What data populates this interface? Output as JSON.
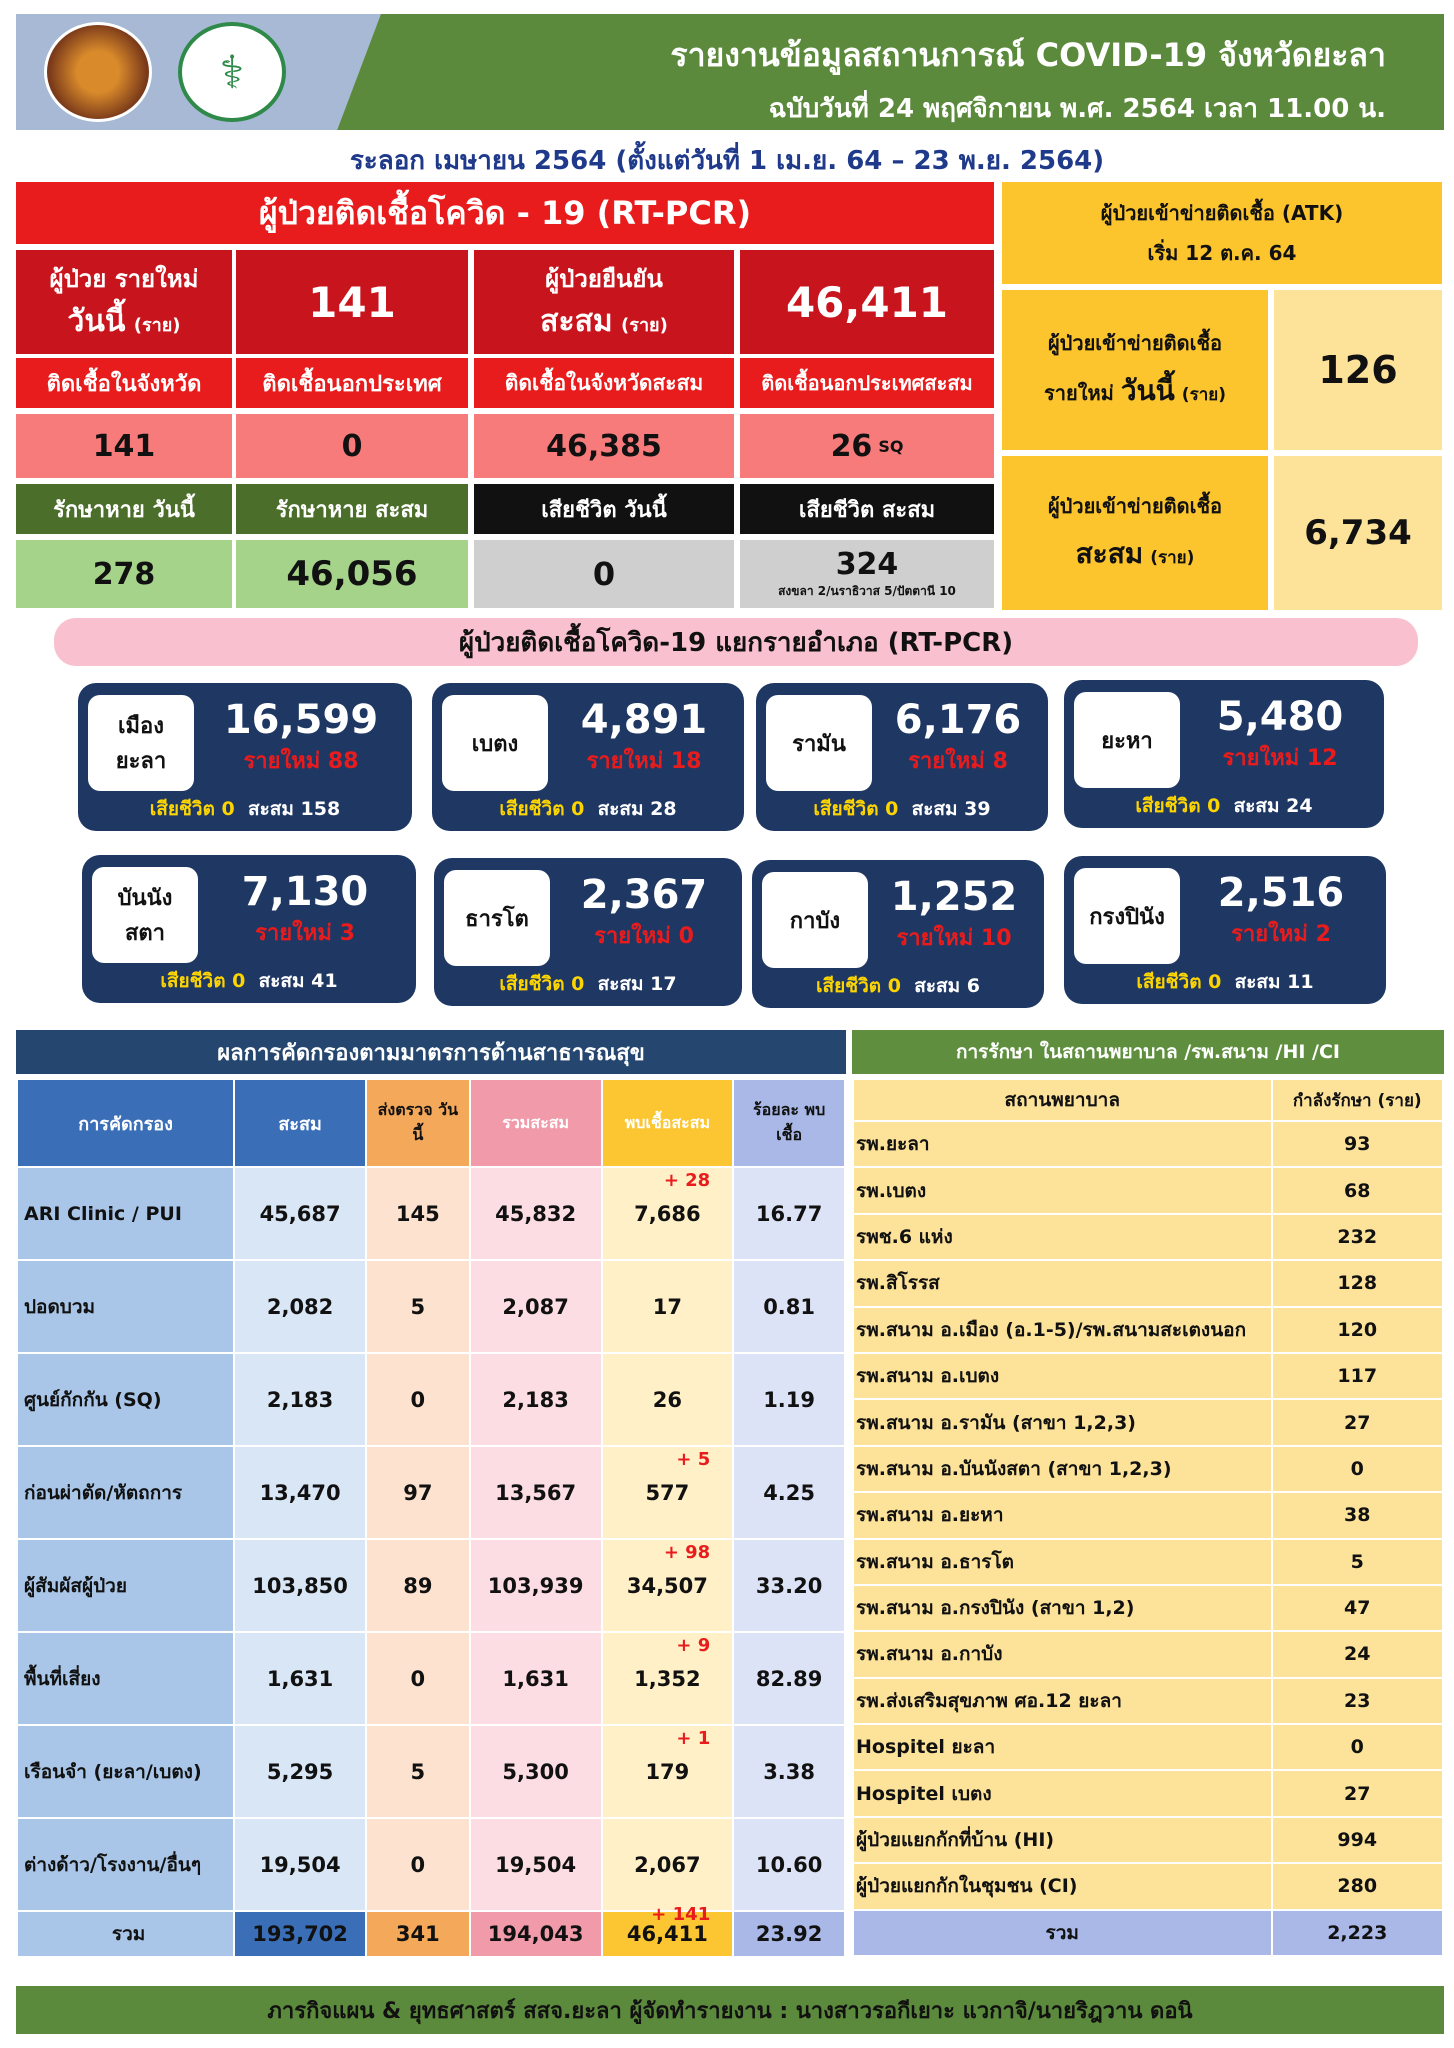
{
  "header": {
    "title": "รายงานข้อมูลสถานการณ์ COVID-19 จังหวัดยะลา",
    "edition": "ฉบับวันที่  24 พฤศจิกายน พ.ศ. 2564 เวลา 11.00 น.",
    "wave": "ระลอก เมษายน 2564 (ตั้งแต่วันที่  1  เม.ย. 64  – 23 พ.ย. 2564)"
  },
  "rtpcr": {
    "title": "ผู้ป่วยติดเชื้อโควิด - 19 (RT-PCR)",
    "new_today_l1": "ผู้ป่วย รายใหม่",
    "new_today_l2": "วันนี้",
    "unit": "(ราย)",
    "new_today": "141",
    "confirmed_l1": "ผู้ป่วยยืนยัน",
    "confirmed_l2": "สะสม",
    "confirmed_total": "46,411",
    "in_prov_label": "ติดเชื้อในจังหวัด",
    "out_country_label": "ติดเชื้อนอกประเทศ",
    "in_prov_cum_label": "ติดเชื้อในจังหวัดสะสม",
    "out_country_cum_label": "ติดเชื้อนอกประเทศสะสม",
    "in_prov": "141",
    "out_country": "0",
    "in_prov_cum": "46,385",
    "out_country_cum": "26",
    "sq": "SQ",
    "recovered_today_label": "รักษาหาย วันนี้",
    "recovered_cum_label": "รักษาหาย สะสม",
    "death_today_label": "เสียชีวิต วันนี้",
    "death_cum_label": "เสียชีวิต สะสม",
    "recovered_today": "278",
    "recovered_cum": "46,056",
    "death_today": "0",
    "death_cum": "324",
    "death_note": "สงขลา 2/นราธิวาส 5/ปัตตานี 10"
  },
  "atk": {
    "title_l1": "ผู้ป่วยเข้าข่ายติดเชื้อ (ATK)",
    "title_l2": "เริ่ม 12 ต.ค. 64",
    "new_l1": "ผู้ป่วยเข้าข่ายติดเชื้อ",
    "new_l2a": "รายใหม่",
    "new_l2b": "วันนี้",
    "unit": "(ราย)",
    "new": "126",
    "cum_l1": "ผู้ป่วยเข้าข่ายติดเชื้อ",
    "cum_l2a": "สะสม",
    "cum": "6,734"
  },
  "district_title": "ผู้ป่วยติดเชื้อโควิด-19 แยกรายอำเภอ (RT-PCR)",
  "districts": [
    {
      "name": "เมือง ยะลา",
      "total": "16,599",
      "new": "รายใหม่ 88",
      "death": "เสียชีวิต 0",
      "cum": "สะสม 158"
    },
    {
      "name": "เบตง",
      "total": "4,891",
      "new": "รายใหม่ 18",
      "death": "เสียชีวิต 0",
      "cum": "สะสม 28"
    },
    {
      "name": "รามัน",
      "total": "6,176",
      "new": "รายใหม่ 8",
      "death": "เสียชีวิต 0",
      "cum": "สะสม 39"
    },
    {
      "name": "ยะหา",
      "total": "5,480",
      "new": "รายใหม่ 12",
      "death": "เสียชีวิต 0",
      "cum": "สะสม 24"
    },
    {
      "name": "บันนัง สตา",
      "total": "7,130",
      "new": "รายใหม่ 3",
      "death": "เสียชีวิต 0",
      "cum": "สะสม 41"
    },
    {
      "name": "ธารโต",
      "total": "2,367",
      "new": "รายใหม่ 0",
      "death": "เสียชีวิต 0",
      "cum": "สะสม 17"
    },
    {
      "name": "กาบัง",
      "total": "1,252",
      "new": "รายใหม่ 10",
      "death": "เสียชีวิต 0",
      "cum": "สะสม 6"
    },
    {
      "name": "กรงปินัง",
      "total": "2,516",
      "new": "รายใหม่ 2",
      "death": "เสียชีวิต 0",
      "cum": "สะสม 11"
    }
  ],
  "screening": {
    "title": "ผลการคัดกรองตามมาตรการด้านสาธารณสุข",
    "headers": [
      "การคัดกรอง",
      "สะสม",
      "ส่งตรวจ วันนี้",
      "รวมสะสม",
      "พบเชื้อสะสม",
      "ร้อยละ พบเชื้อ"
    ],
    "rows": [
      {
        "name": "ARI Clinic / PUI",
        "cum": "45,687",
        "today": "145",
        "total": "45,832",
        "found": "7,686",
        "plus": "+ 28",
        "pct": "16.77"
      },
      {
        "name": "ปอดบวม",
        "cum": "2,082",
        "today": "5",
        "total": "2,087",
        "found": "17",
        "plus": "",
        "pct": "0.81"
      },
      {
        "name": "ศูนย์กักกัน (SQ)",
        "cum": "2,183",
        "today": "0",
        "total": "2,183",
        "found": "26",
        "plus": "",
        "pct": "1.19"
      },
      {
        "name": "ก่อนผ่าตัด/หัตถการ",
        "cum": "13,470",
        "today": "97",
        "total": "13,567",
        "found": "577",
        "plus": "+ 5",
        "pct": "4.25"
      },
      {
        "name": "ผู้สัมผัสผู้ป่วย",
        "cum": "103,850",
        "today": "89",
        "total": "103,939",
        "found": "34,507",
        "plus": "+ 98",
        "pct": "33.20"
      },
      {
        "name": "พื้นที่เสี่ยง",
        "cum": "1,631",
        "today": "0",
        "total": "1,631",
        "found": "1,352",
        "plus": "+ 9",
        "pct": "82.89"
      },
      {
        "name": "เรือนจำ (ยะลา/เบตง)",
        "cum": "5,295",
        "today": "5",
        "total": "5,300",
        "found": "179",
        "plus": "+ 1",
        "pct": "3.38"
      },
      {
        "name": "ต่างด้าว/โรงงาน/อื่นๆ",
        "cum": "19,504",
        "today": "0",
        "total": "19,504",
        "found": "2,067",
        "plus": "",
        "pct": "10.60"
      }
    ],
    "total": {
      "name": "รวม",
      "cum": "193,702",
      "today": "341",
      "total": "194,043",
      "found": "46,411",
      "plus": "+ 141",
      "pct": "23.92"
    }
  },
  "hospital": {
    "title": "การรักษา ในสถานพยาบาล /รพ.สนาม /HI /CI",
    "col1": "สถานพยาบาล",
    "col2": "กำลังรักษา (ราย)",
    "rows": [
      {
        "name": "รพ.ยะลา",
        "count": "93"
      },
      {
        "name": "รพ.เบตง",
        "count": "68"
      },
      {
        "name": "รพช.6 แห่ง",
        "count": "232"
      },
      {
        "name": "รพ.สิโรรส",
        "count": "128"
      },
      {
        "name": "รพ.สนาม อ.เมือง (อ.1-5)/รพ.สนามสะเตงนอก",
        "count": "120"
      },
      {
        "name": "รพ.สนาม อ.เบตง",
        "count": "117"
      },
      {
        "name": "รพ.สนาม อ.รามัน (สาขา 1,2,3)",
        "count": "27"
      },
      {
        "name": "รพ.สนาม อ.บันนังสตา (สาขา 1,2,3)",
        "count": "0"
      },
      {
        "name": "รพ.สนาม อ.ยะหา",
        "count": "38"
      },
      {
        "name": "รพ.สนาม อ.ธารโต",
        "count": "5"
      },
      {
        "name": "รพ.สนาม อ.กรงปินัง (สาขา 1,2)",
        "count": "47"
      },
      {
        "name": "รพ.สนาม อ.กาบัง",
        "count": "24"
      },
      {
        "name": "รพ.ส่งเสริมสุขภาพ ศอ.12 ยะลา",
        "count": "23"
      },
      {
        "name": "Hospitel  ยะลา",
        "count": "0"
      },
      {
        "name": "Hospitel  เบตง",
        "count": "27"
      },
      {
        "name": "ผู้ป่วยแยกกักที่บ้าน (HI)",
        "count": "994"
      },
      {
        "name": "ผู้ป่วยแยกกักในชุมชน (CI)",
        "count": "280"
      }
    ],
    "total_label": "รวม",
    "total": "2,223"
  },
  "footer": "ภารกิจแผน & ยุทธศาสตร์  สสจ.ยะลา      ผู้จัดทำรายงาน :  นางสาวรอกีเยาะ  แวกาจิ/นายริฎวาน ดอนิ"
}
